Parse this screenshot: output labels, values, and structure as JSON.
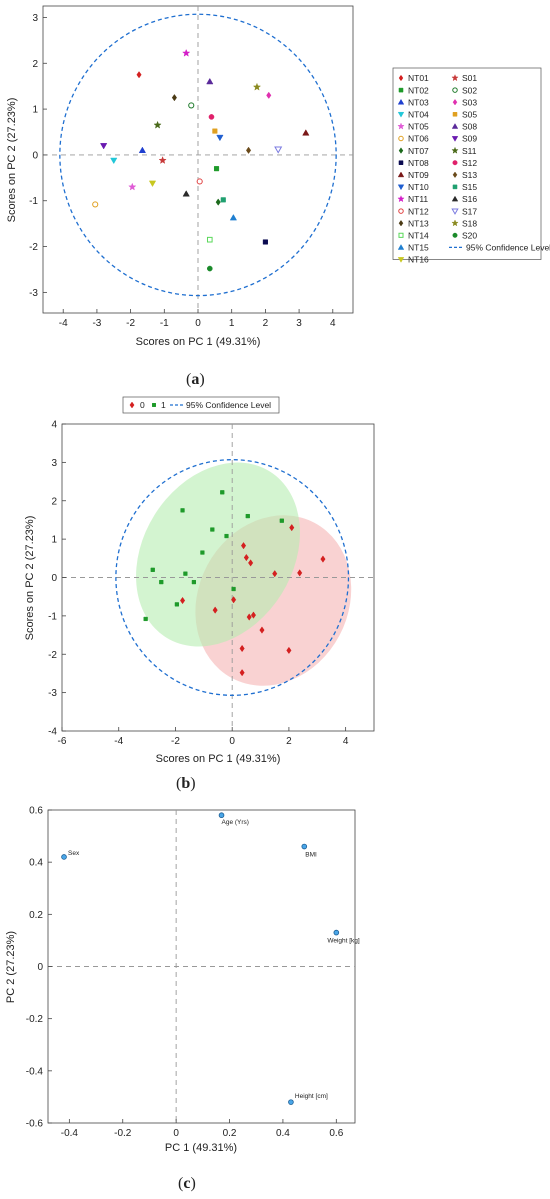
{
  "colors": {
    "ci": "#1f6fd0",
    "group0": "#d42020",
    "group1": "#1e9a2a",
    "ellipse0_fill": "#f5b4b4",
    "ellipse1_fill": "#b5ecb0",
    "loading_point": "#4aa6e8"
  },
  "chart_data": [
    {
      "panel_label": "a",
      "type": "scatter",
      "xlabel": "Scores on PC 1 (49.31%)",
      "ylabel": "Scores on PC 2 (27.23%)",
      "xlim": [
        -4.6,
        4.6
      ],
      "ylim": [
        -3.45,
        3.25
      ],
      "xticks": [
        "-4",
        "-3",
        "-2",
        "-1",
        "0",
        "1",
        "2",
        "3",
        "4"
      ],
      "yticks": [
        "-3",
        "-2",
        "-1",
        "0",
        "1",
        "2",
        "3"
      ],
      "confidence_label": "95% Confidence Level",
      "confidence_radius": 4.1,
      "confidence_ry": 3.07,
      "legend_placement": "right, outside",
      "series": [
        {
          "name": "NT01",
          "marker": "diamond",
          "color": "#d42020",
          "fill": true,
          "x": -1.75,
          "y": 1.75
        },
        {
          "name": "NT02",
          "marker": "square",
          "color": "#1e9a2a",
          "fill": true,
          "x": 0.55,
          "y": -0.3
        },
        {
          "name": "NT03",
          "marker": "triangle-up",
          "color": "#1f3fcf",
          "fill": true,
          "x": -1.65,
          "y": 0.1
        },
        {
          "name": "NT04",
          "marker": "triangle-down",
          "color": "#22c7d8",
          "fill": true,
          "x": -2.5,
          "y": -0.12
        },
        {
          "name": "NT05",
          "marker": "star",
          "color": "#e05bd6",
          "fill": true,
          "x": -1.95,
          "y": -0.7
        },
        {
          "name": "NT06",
          "marker": "circle",
          "color": "#e0a020",
          "fill": false,
          "x": -3.05,
          "y": -1.08
        },
        {
          "name": "NT07",
          "marker": "diamond",
          "color": "#1c6a1c",
          "fill": true,
          "x": 0.6,
          "y": -1.03
        },
        {
          "name": "NT08",
          "marker": "square",
          "color": "#0a0a50",
          "fill": true,
          "x": 2.0,
          "y": -1.9
        },
        {
          "name": "NT09",
          "marker": "triangle-up",
          "color": "#7a1818",
          "fill": true,
          "x": 3.2,
          "y": 0.48
        },
        {
          "name": "NT10",
          "marker": "triangle-down",
          "color": "#1f5ed0",
          "fill": true,
          "x": 0.65,
          "y": 0.38
        },
        {
          "name": "NT11",
          "marker": "star",
          "color": "#d41ec8",
          "fill": true,
          "x": -0.35,
          "y": 2.22
        },
        {
          "name": "NT12",
          "marker": "circle",
          "color": "#e04040",
          "fill": false,
          "x": 0.05,
          "y": -0.58
        },
        {
          "name": "NT13",
          "marker": "diamond",
          "color": "#4a3a14",
          "fill": true,
          "x": -0.7,
          "y": 1.25
        },
        {
          "name": "NT14",
          "marker": "square",
          "color": "#5ad85a",
          "fill": false,
          "x": 0.35,
          "y": -1.85
        },
        {
          "name": "NT15",
          "marker": "triangle-up",
          "color": "#1f7fd0",
          "fill": true,
          "x": 1.05,
          "y": -1.37
        },
        {
          "name": "NT16",
          "marker": "triangle-down",
          "color": "#c8c820",
          "fill": true,
          "x": -1.35,
          "y": -0.62
        },
        {
          "name": "S01",
          "marker": "star",
          "color": "#c83a3a",
          "fill": true,
          "x": -1.05,
          "y": -0.12
        },
        {
          "name": "S02",
          "marker": "circle",
          "color": "#1e7a2a",
          "fill": false,
          "x": -0.2,
          "y": 1.08
        },
        {
          "name": "S03",
          "marker": "diamond",
          "color": "#e030b0",
          "fill": true,
          "x": 2.1,
          "y": 1.3
        },
        {
          "name": "S05",
          "marker": "square",
          "color": "#e0a020",
          "fill": true,
          "x": 0.5,
          "y": 0.52
        },
        {
          "name": "S08",
          "marker": "triangle-up",
          "color": "#5a2a9a",
          "fill": true,
          "x": 0.35,
          "y": 1.6
        },
        {
          "name": "S09",
          "marker": "triangle-down",
          "color": "#6a1ab0",
          "fill": true,
          "x": -2.8,
          "y": 0.2
        },
        {
          "name": "S11",
          "marker": "star",
          "color": "#4a6a1a",
          "fill": true,
          "x": -1.2,
          "y": 0.65
        },
        {
          "name": "S12",
          "marker": "circle",
          "color": "#e0206a",
          "fill": true,
          "x": 0.4,
          "y": 0.83
        },
        {
          "name": "S13",
          "marker": "diamond",
          "color": "#6a4a1a",
          "fill": true,
          "x": 1.5,
          "y": 0.1
        },
        {
          "name": "S15",
          "marker": "square",
          "color": "#20a070",
          "fill": true,
          "x": 0.75,
          "y": -0.98
        },
        {
          "name": "S16",
          "marker": "triangle-up",
          "color": "#2a2a2a",
          "fill": true,
          "x": -0.35,
          "y": -0.85
        },
        {
          "name": "S17",
          "marker": "triangle-down",
          "color": "#7a7ae0",
          "fill": false,
          "x": 2.38,
          "y": 0.12
        },
        {
          "name": "S18",
          "marker": "star",
          "color": "#8a8a20",
          "fill": true,
          "x": 1.75,
          "y": 1.48
        },
        {
          "name": "S20",
          "marker": "circle",
          "color": "#1a8a2a",
          "fill": true,
          "x": 0.35,
          "y": -2.48
        }
      ]
    },
    {
      "panel_label": "b",
      "type": "scatter",
      "xlabel": "Scores on PC 1 (49.31%)",
      "ylabel": "Scores on PC 2 (27.23%)",
      "xlim": [
        -6,
        5
      ],
      "ylim": [
        -4,
        4
      ],
      "xticks": [
        "-6",
        "-4",
        "-2",
        "0",
        "2",
        "4"
      ],
      "yticks": [
        "-4",
        "-3",
        "-2",
        "-1",
        "0",
        "1",
        "2",
        "3",
        "4"
      ],
      "legend_placement": "top",
      "legend": [
        "0",
        "1",
        "95% Confidence Level"
      ],
      "confidence_radius": 4.1,
      "confidence_ry": 3.07,
      "series": [
        {
          "name": "0",
          "marker": "diamond",
          "points": [
            [
              -1.75,
              -0.6
            ],
            [
              -0.6,
              -0.85
            ],
            [
              0.05,
              -0.58
            ],
            [
              0.4,
              0.83
            ],
            [
              0.5,
              0.52
            ],
            [
              0.65,
              0.38
            ],
            [
              0.6,
              -1.03
            ],
            [
              0.75,
              -0.98
            ],
            [
              0.35,
              -1.85
            ],
            [
              1.05,
              -1.37
            ],
            [
              0.35,
              -2.48
            ],
            [
              1.5,
              0.1
            ],
            [
              2.1,
              1.3
            ],
            [
              2.38,
              0.12
            ],
            [
              2.0,
              -1.9
            ],
            [
              3.2,
              0.48
            ]
          ]
        },
        {
          "name": "1",
          "marker": "square",
          "points": [
            [
              -3.05,
              -1.08
            ],
            [
              -2.8,
              0.2
            ],
            [
              -2.5,
              -0.12
            ],
            [
              -1.95,
              -0.7
            ],
            [
              -1.75,
              1.75
            ],
            [
              -1.65,
              0.1
            ],
            [
              -1.35,
              -0.12
            ],
            [
              -1.05,
              0.65
            ],
            [
              -0.7,
              1.25
            ],
            [
              -0.35,
              2.22
            ],
            [
              -0.2,
              1.08
            ],
            [
              0.55,
              1.6
            ],
            [
              0.05,
              -0.3
            ],
            [
              1.75,
              1.48
            ]
          ]
        }
      ],
      "ellipses": [
        {
          "group": "0",
          "cx": 1.45,
          "cy": -0.6,
          "rx": 3.1,
          "ry": 1.95,
          "angle_deg": -62
        },
        {
          "group": "1",
          "cx": -0.5,
          "cy": 0.6,
          "rx": 3.45,
          "ry": 1.95,
          "angle_deg": -58
        }
      ]
    },
    {
      "panel_label": "c",
      "type": "scatter",
      "xlabel": "PC 1 (49.31%)",
      "ylabel": "PC 2 (27.23%)",
      "xlim": [
        -0.48,
        0.67
      ],
      "ylim": [
        -0.6,
        0.6
      ],
      "xticks": [
        "-0.4",
        "-0.2",
        "0",
        "0.2",
        "0.4",
        "0.6"
      ],
      "yticks": [
        "-0.6",
        "-0.4",
        "-0.2",
        "0",
        "0.2",
        "0.4",
        "0.6"
      ],
      "points": [
        {
          "label": "Sex",
          "x": -0.42,
          "y": 0.42
        },
        {
          "label": "Age (Yrs)",
          "x": 0.17,
          "y": 0.58
        },
        {
          "label": "BMI",
          "x": 0.48,
          "y": 0.46
        },
        {
          "label": "Weight [kg]",
          "x": 0.6,
          "y": 0.13
        },
        {
          "label": "Height [cm]",
          "x": 0.43,
          "y": -0.52
        }
      ]
    }
  ]
}
